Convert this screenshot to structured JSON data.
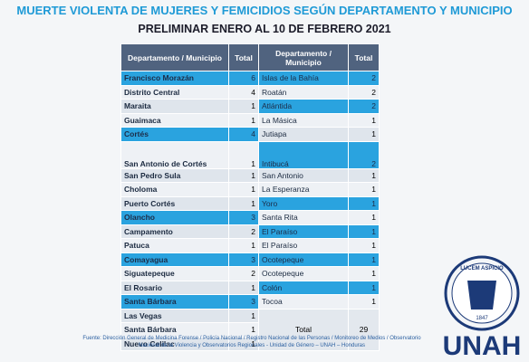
{
  "title": "MUERTE VIOLENTA DE MUJERES Y FEMICIDIOS SEGÚN DEPARTAMENTO Y MUNICIPIO",
  "subtitle": "PRELIMINAR ENERO AL 10 DE FEBRERO 2021",
  "table": {
    "header": [
      "Departamento / Municipio",
      "Total",
      "Departamento / Municipio",
      "Total"
    ],
    "left": [
      {
        "name": "Francisco Morazán",
        "total": 6,
        "department": true
      },
      {
        "name": "Distrito Central",
        "total": 4,
        "department": false
      },
      {
        "name": "Maraita",
        "total": 1,
        "department": false
      },
      {
        "name": "Guaimaca",
        "total": 1,
        "department": false
      },
      {
        "name": "Cortés",
        "total": 4,
        "department": true
      },
      {
        "name": "San Antonio de Cortés",
        "total": 1,
        "department": false
      },
      {
        "name": "San Pedro Sula",
        "total": 1,
        "department": false
      },
      {
        "name": "Choloma",
        "total": 1,
        "department": false
      },
      {
        "name": "Puerto Cortés",
        "total": 1,
        "department": false
      },
      {
        "name": "Olancho",
        "total": 3,
        "department": true
      },
      {
        "name": "Campamento",
        "total": 2,
        "department": false
      },
      {
        "name": "Patuca",
        "total": 1,
        "department": false
      },
      {
        "name": "Comayagua",
        "total": 3,
        "department": true
      },
      {
        "name": "Siguatepeque",
        "total": 2,
        "department": false
      },
      {
        "name": "El Rosario",
        "total": 1,
        "department": false
      },
      {
        "name": "Santa Bárbara",
        "total": 3,
        "department": true
      },
      {
        "name": "Las Vegas",
        "total": 1,
        "department": false
      },
      {
        "name": "Santa Bárbara",
        "total": 1,
        "department": false
      },
      {
        "name": "Nuevo Celilac",
        "total": 1,
        "department": false
      }
    ],
    "right": [
      {
        "name": "Islas de la Bahía",
        "total": 2,
        "department": true
      },
      {
        "name": "Roatán",
        "total": 2,
        "department": false
      },
      {
        "name": "Atlántida",
        "total": 2,
        "department": true
      },
      {
        "name": "La Másica",
        "total": 1,
        "department": false
      },
      {
        "name": "Jutiapa",
        "total": 1,
        "department": false
      },
      {
        "name": "Intibucá",
        "total": 2,
        "department": true
      },
      {
        "name": "San Antonio",
        "total": 1,
        "department": false
      },
      {
        "name": "La Esperanza",
        "total": 1,
        "department": false
      },
      {
        "name": "Yoro",
        "total": 1,
        "department": true
      },
      {
        "name": "Santa Rita",
        "total": 1,
        "department": false
      },
      {
        "name": "El Paraíso",
        "total": 1,
        "department": true
      },
      {
        "name": "El Paraíso",
        "total": 1,
        "department": false
      },
      {
        "name": "Ocotepeque",
        "total": 1,
        "department": true
      },
      {
        "name": "Ocotepeque",
        "total": 1,
        "department": false
      },
      {
        "name": "Colón",
        "total": 1,
        "department": true
      },
      {
        "name": "Tocoa",
        "total": 1,
        "department": false
      }
    ],
    "total": {
      "label": "Total",
      "value": 29
    }
  },
  "footer": "Fuente: Dirección General de Medicina Forense / Policía Nacional / Registro Nacional de las Personas / Monitoreo de Medios / Observatorio Nacional de la Violencia y Observatorios Regionales - Unidad de Género – UNAH – Honduras",
  "logo": {
    "motto": "LUCEM ASPICIO",
    "year": "1847",
    "name": "UNAH"
  }
}
